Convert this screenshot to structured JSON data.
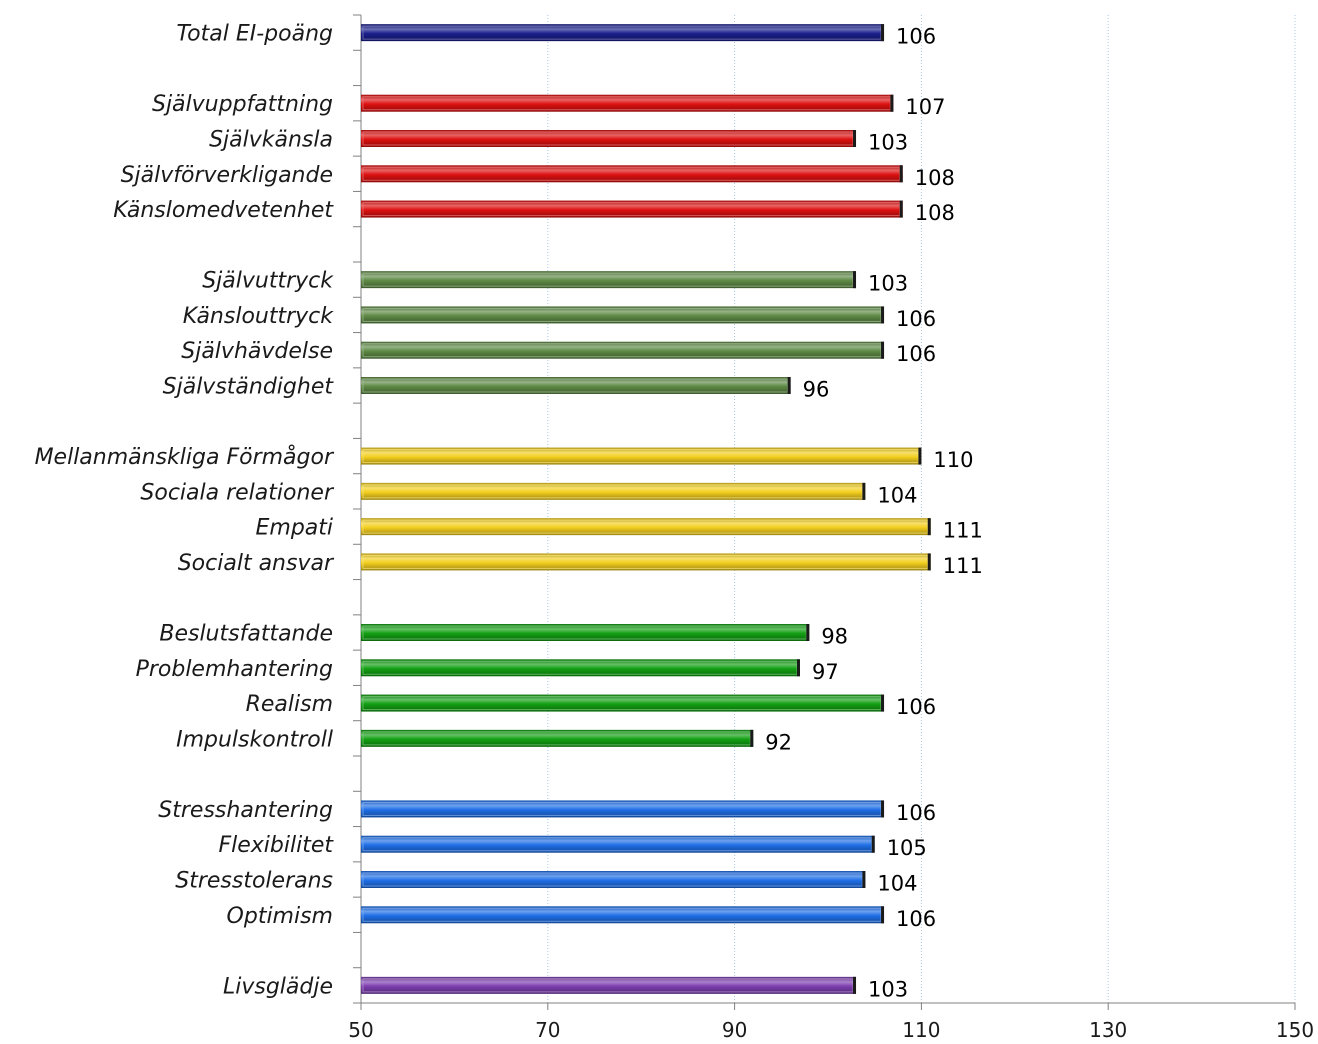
{
  "chart_data": {
    "type": "bar",
    "orientation": "horizontal",
    "title": "",
    "xlabel": "",
    "ylabel": "",
    "xlim": [
      50,
      150
    ],
    "x_ticks": [
      "50",
      "70",
      "90",
      "110",
      "130",
      "150"
    ],
    "grid": "vertical dotted",
    "legend": "none",
    "categories": [
      "Total EI-poäng",
      "",
      "Självuppfattning",
      "Självkänsla",
      "Självförverkligande",
      "Känslomedvetenhet",
      "",
      "Självuttryck",
      "Känslouttryck",
      "Självhävdelse",
      "Självständighet",
      "",
      "Mellanmänskliga Förmågor",
      "Sociala relationer",
      "Empati",
      "Socialt ansvar",
      "",
      "Beslutsfattande",
      "Problemhantering",
      "Realism",
      "Impulskontroll",
      "",
      "Stresshantering",
      "Flexibilitet",
      "Stresstolerans",
      "Optimism",
      "",
      "Livsglädje"
    ],
    "values": [
      106,
      null,
      107,
      103,
      108,
      108,
      null,
      103,
      106,
      106,
      96,
      null,
      110,
      104,
      111,
      111,
      null,
      98,
      97,
      106,
      92,
      null,
      106,
      105,
      104,
      106,
      null,
      103
    ],
    "data_labels": [
      "106",
      "",
      "107",
      "103",
      "108",
      "108",
      "",
      "103",
      "106",
      "106",
      "96",
      "",
      "110",
      "104",
      "111",
      "111",
      "",
      "98",
      "97",
      "106",
      "92",
      "",
      "106",
      "105",
      "104",
      "106",
      "",
      "103"
    ],
    "bar_colors": [
      "#1a1f8c",
      "",
      "#dd1111",
      "#dd1111",
      "#dd1111",
      "#dd1111",
      "",
      "#5e8a45",
      "#5e8a45",
      "#5e8a45",
      "#5e8a45",
      "",
      "#f3cf1e",
      "#f3cf1e",
      "#f3cf1e",
      "#f3cf1e",
      "",
      "#13a013",
      "#13a013",
      "#13a013",
      "#13a013",
      "",
      "#1f6fe6",
      "#1f6fe6",
      "#1f6fe6",
      "#1f6fe6",
      "",
      "#7e3eb0"
    ]
  }
}
